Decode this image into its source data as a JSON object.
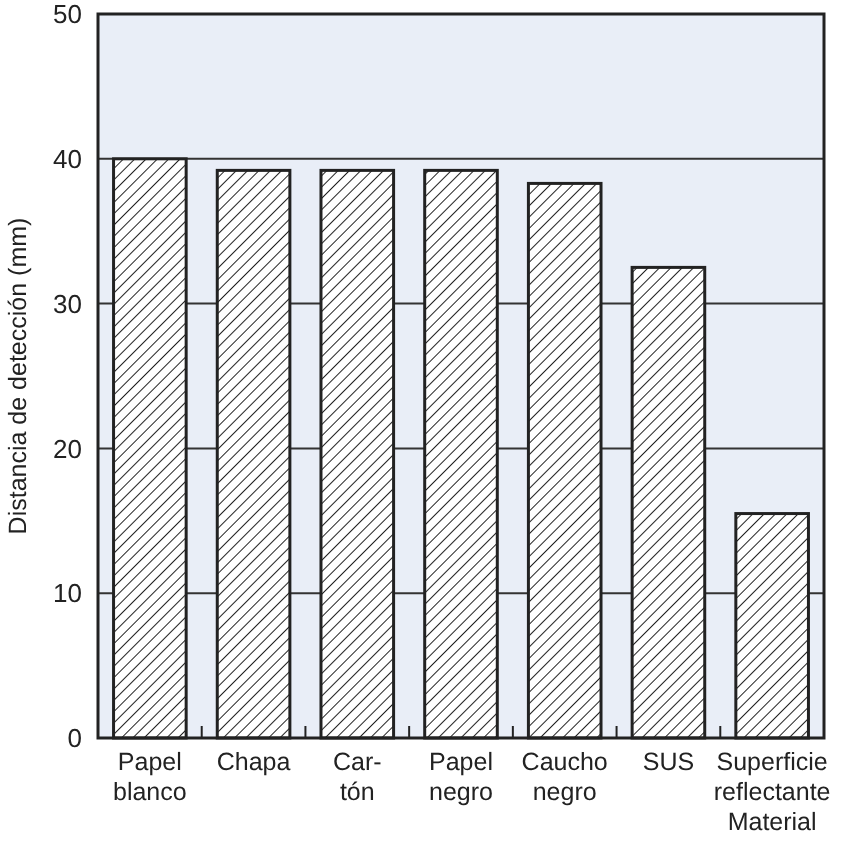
{
  "chart_data": {
    "type": "bar",
    "xlabel": "Material",
    "ylabel": "Distancia de detección (mm)",
    "categories": [
      "Papel\nblanco",
      "Chapa",
      "Car-\ntón",
      "Papel\nnegro",
      "Caucho\nnegro",
      "SUS",
      "Superficie\nreflectante"
    ],
    "values": [
      40,
      39.2,
      39.2,
      39.2,
      38.3,
      32.5,
      15.5
    ],
    "color": "#222222",
    "ylim": [
      0,
      50
    ],
    "yticks": [
      0,
      10,
      20,
      30,
      40,
      50
    ],
    "grid": "y"
  }
}
